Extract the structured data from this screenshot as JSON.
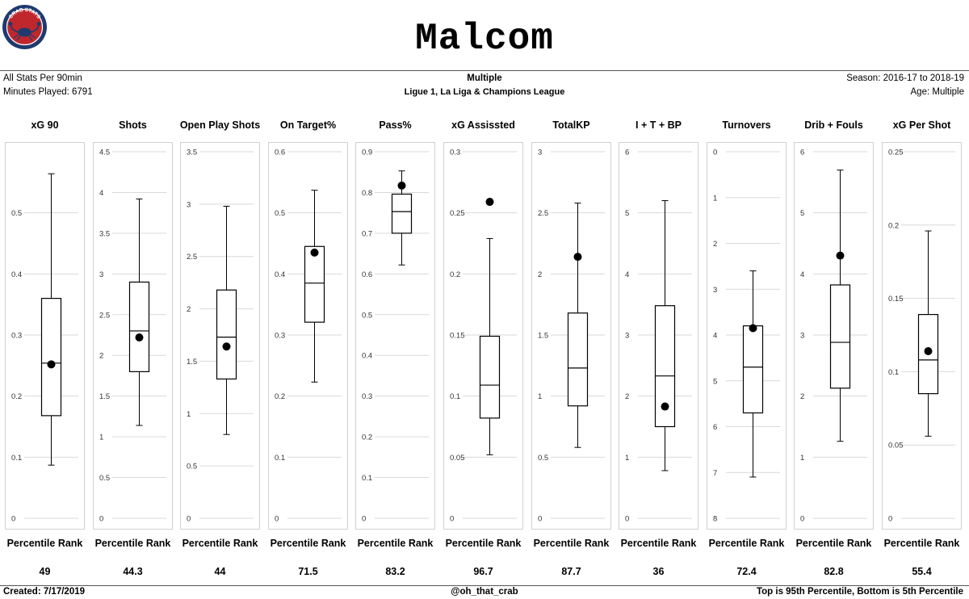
{
  "header": {
    "logo_text": "CRAB STATS",
    "title": "Malcom"
  },
  "info": {
    "left_line1": "All Stats Per 90min",
    "left_line2": "Minutes Played: 6791",
    "center_line1": "Multiple",
    "center_line2": "Ligue 1, La Liga & Champions League",
    "right_line1": "Season: 2016-17 to 2018-19",
    "right_line2": "Age: Multiple"
  },
  "percentile_label": "Percentile Rank",
  "footer": {
    "created": "Created:  7/17/2019",
    "handle": "@oh_that_crab",
    "note": "Top is 95th Percentile, Bottom is 5th Percentile"
  },
  "colors": {
    "box_border": "#000000",
    "gridline": "#d9d9d9",
    "panel_border": "#d0d0d0",
    "dot": "#000000",
    "logo_ring": "#1f3a6e",
    "logo_fill": "#c0272d"
  },
  "chart_data": [
    {
      "type": "box",
      "title": "xG 90",
      "ylim": [
        0,
        0.6
      ],
      "ticks": [
        0,
        0.1,
        0.2,
        0.3,
        0.4,
        0.5
      ],
      "tick_labels": [
        "0",
        "0.1",
        "0.2",
        "0.3",
        "0.4",
        "0.5"
      ],
      "whisker_low": 0.087,
      "q1": 0.168,
      "median": 0.254,
      "q3": 0.36,
      "whisker_high": 0.564,
      "player": 0.252,
      "percentile": "49"
    },
    {
      "type": "box",
      "title": "Shots",
      "ylim": [
        0,
        4.5
      ],
      "ticks": [
        0,
        0.5,
        1,
        1.5,
        2,
        2.5,
        3,
        3.5,
        4,
        4.5
      ],
      "tick_labels": [
        "0",
        "0.5",
        "1",
        "1.5",
        "2",
        "2.5",
        "3",
        "3.5",
        "4",
        "4.5"
      ],
      "whisker_low": 1.14,
      "q1": 1.8,
      "median": 2.3,
      "q3": 2.9,
      "whisker_high": 3.92,
      "player": 2.22,
      "percentile": "44.3"
    },
    {
      "type": "box",
      "title": "Open Play Shots",
      "ylim": [
        0,
        3.5
      ],
      "ticks": [
        0,
        0.5,
        1,
        1.5,
        2,
        2.5,
        3,
        3.5
      ],
      "tick_labels": [
        "0",
        "0.5",
        "1",
        "1.5",
        "2",
        "2.5",
        "3",
        "3.5"
      ],
      "whisker_low": 0.8,
      "q1": 1.33,
      "median": 1.73,
      "q3": 2.18,
      "whisker_high": 2.98,
      "player": 1.64,
      "percentile": "44"
    },
    {
      "type": "box",
      "title": "On Target%",
      "ylim": [
        0,
        0.6
      ],
      "ticks": [
        0,
        0.1,
        0.2,
        0.3,
        0.4,
        0.5,
        0.6
      ],
      "tick_labels": [
        "0",
        "0.1",
        "0.2",
        "0.3",
        "0.4",
        "0.5",
        "0.6"
      ],
      "whisker_low": 0.223,
      "q1": 0.321,
      "median": 0.385,
      "q3": 0.445,
      "whisker_high": 0.537,
      "player": 0.435,
      "percentile": "71.5"
    },
    {
      "type": "box",
      "title": "Pass%",
      "ylim": [
        0,
        0.9
      ],
      "ticks": [
        0,
        0.1,
        0.2,
        0.3,
        0.4,
        0.5,
        0.6,
        0.7,
        0.8,
        0.9
      ],
      "tick_labels": [
        "0",
        "0.1",
        "0.2",
        "0.3",
        "0.4",
        "0.5",
        "0.6",
        "0.7",
        "0.8",
        "0.9"
      ],
      "whisker_low": 0.622,
      "q1": 0.7,
      "median": 0.753,
      "q3": 0.796,
      "whisker_high": 0.853,
      "player": 0.817,
      "percentile": "83.2"
    },
    {
      "type": "box",
      "title": "xG Assissted",
      "ylim": [
        0,
        0.3
      ],
      "ticks": [
        0,
        0.05,
        0.1,
        0.15,
        0.2,
        0.25,
        0.3
      ],
      "tick_labels": [
        "0",
        "0.05",
        "0.1",
        "0.15",
        "0.2",
        "0.25",
        "0.3"
      ],
      "whisker_low": 0.052,
      "q1": 0.082,
      "median": 0.109,
      "q3": 0.149,
      "whisker_high": 0.229,
      "player": 0.259,
      "percentile": "96.7"
    },
    {
      "type": "box",
      "title": "TotalKP",
      "ylim": [
        0,
        3
      ],
      "ticks": [
        0,
        0.5,
        1,
        1.5,
        2,
        2.5,
        3
      ],
      "tick_labels": [
        "0",
        "0.5",
        "1",
        "1.5",
        "2",
        "2.5",
        "3"
      ],
      "whisker_low": 0.58,
      "q1": 0.92,
      "median": 1.23,
      "q3": 1.68,
      "whisker_high": 2.58,
      "player": 2.14,
      "percentile": "87.7"
    },
    {
      "type": "box",
      "title": "I + T + BP",
      "ylim": [
        0,
        6
      ],
      "ticks": [
        0,
        1,
        2,
        3,
        4,
        5,
        6
      ],
      "tick_labels": [
        "0",
        "1",
        "2",
        "3",
        "4",
        "5",
        "6"
      ],
      "whisker_low": 0.78,
      "q1": 1.5,
      "median": 2.33,
      "q3": 3.48,
      "whisker_high": 5.2,
      "player": 1.83,
      "percentile": "36"
    },
    {
      "type": "box",
      "title": "Turnovers",
      "ylim": [
        0,
        8
      ],
      "inverted": true,
      "ticks": [
        0,
        1,
        2,
        3,
        4,
        5,
        6,
        7,
        8
      ],
      "tick_labels": [
        "0",
        "1",
        "2",
        "3",
        "4",
        "5",
        "6",
        "7",
        "8"
      ],
      "whisker_low": 2.6,
      "q1": 3.8,
      "median": 4.7,
      "q3": 5.7,
      "whisker_high": 7.1,
      "player": 3.85,
      "percentile": "72.4"
    },
    {
      "type": "box",
      "title": "Drib + Fouls",
      "ylim": [
        0,
        6
      ],
      "ticks": [
        0,
        1,
        2,
        3,
        4,
        5,
        6
      ],
      "tick_labels": [
        "0",
        "1",
        "2",
        "3",
        "4",
        "5",
        "6"
      ],
      "whisker_low": 1.26,
      "q1": 2.13,
      "median": 2.88,
      "q3": 3.82,
      "whisker_high": 5.7,
      "player": 4.3,
      "percentile": "82.8"
    },
    {
      "type": "box",
      "title": "xG Per Shot",
      "ylim": [
        0,
        0.25
      ],
      "ticks": [
        0,
        0.05,
        0.1,
        0.15,
        0.2,
        0.25
      ],
      "tick_labels": [
        "0",
        "0.05",
        "0.1",
        "0.15",
        "0.2",
        "0.25"
      ],
      "whisker_low": 0.056,
      "q1": 0.085,
      "median": 0.108,
      "q3": 0.139,
      "whisker_high": 0.196,
      "player": 0.114,
      "percentile": "55.4"
    }
  ]
}
